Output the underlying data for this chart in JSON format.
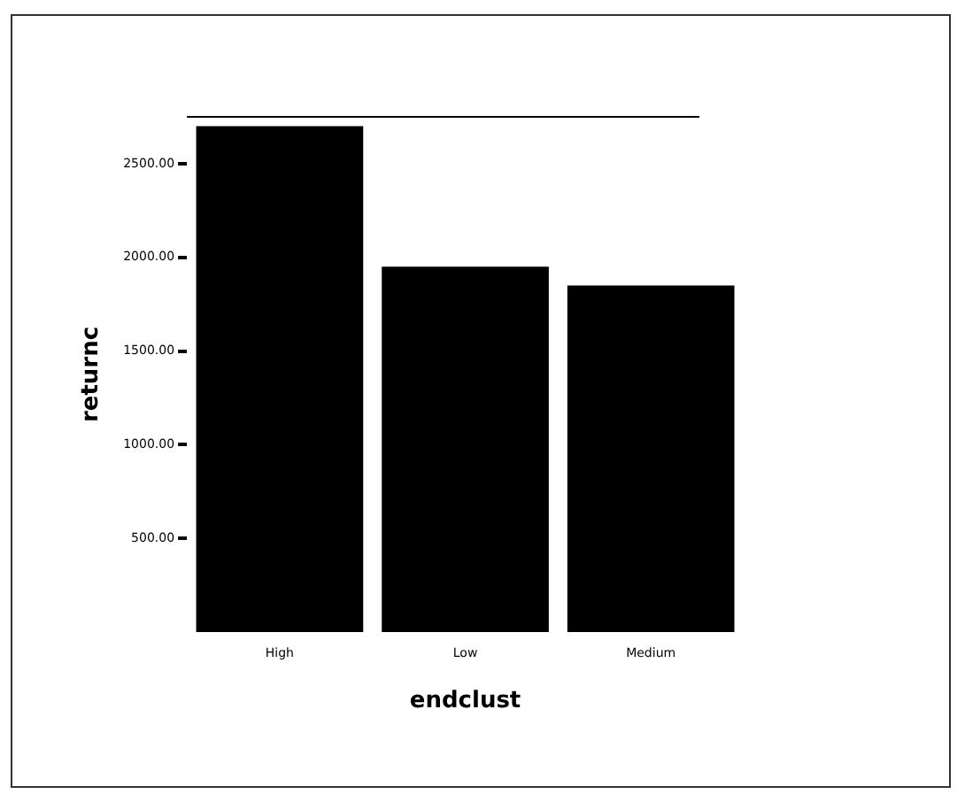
{
  "chart_data": {
    "type": "bar",
    "xlabel": "endclust",
    "ylabel": "returnc",
    "categories": [
      "High",
      "Low",
      "Medium"
    ],
    "values": [
      2700,
      1950,
      1850
    ],
    "color": "#000000",
    "ylim": [
      0,
      2750
    ],
    "yticks": [
      {
        "value": 500,
        "label": "500.00"
      },
      {
        "value": 1000,
        "label": "1000.00"
      },
      {
        "value": 1500,
        "label": "1500.00"
      },
      {
        "value": 2000,
        "label": "2000.00"
      },
      {
        "value": 2500,
        "label": "2500.00"
      }
    ],
    "grid": false,
    "legend": false
  }
}
